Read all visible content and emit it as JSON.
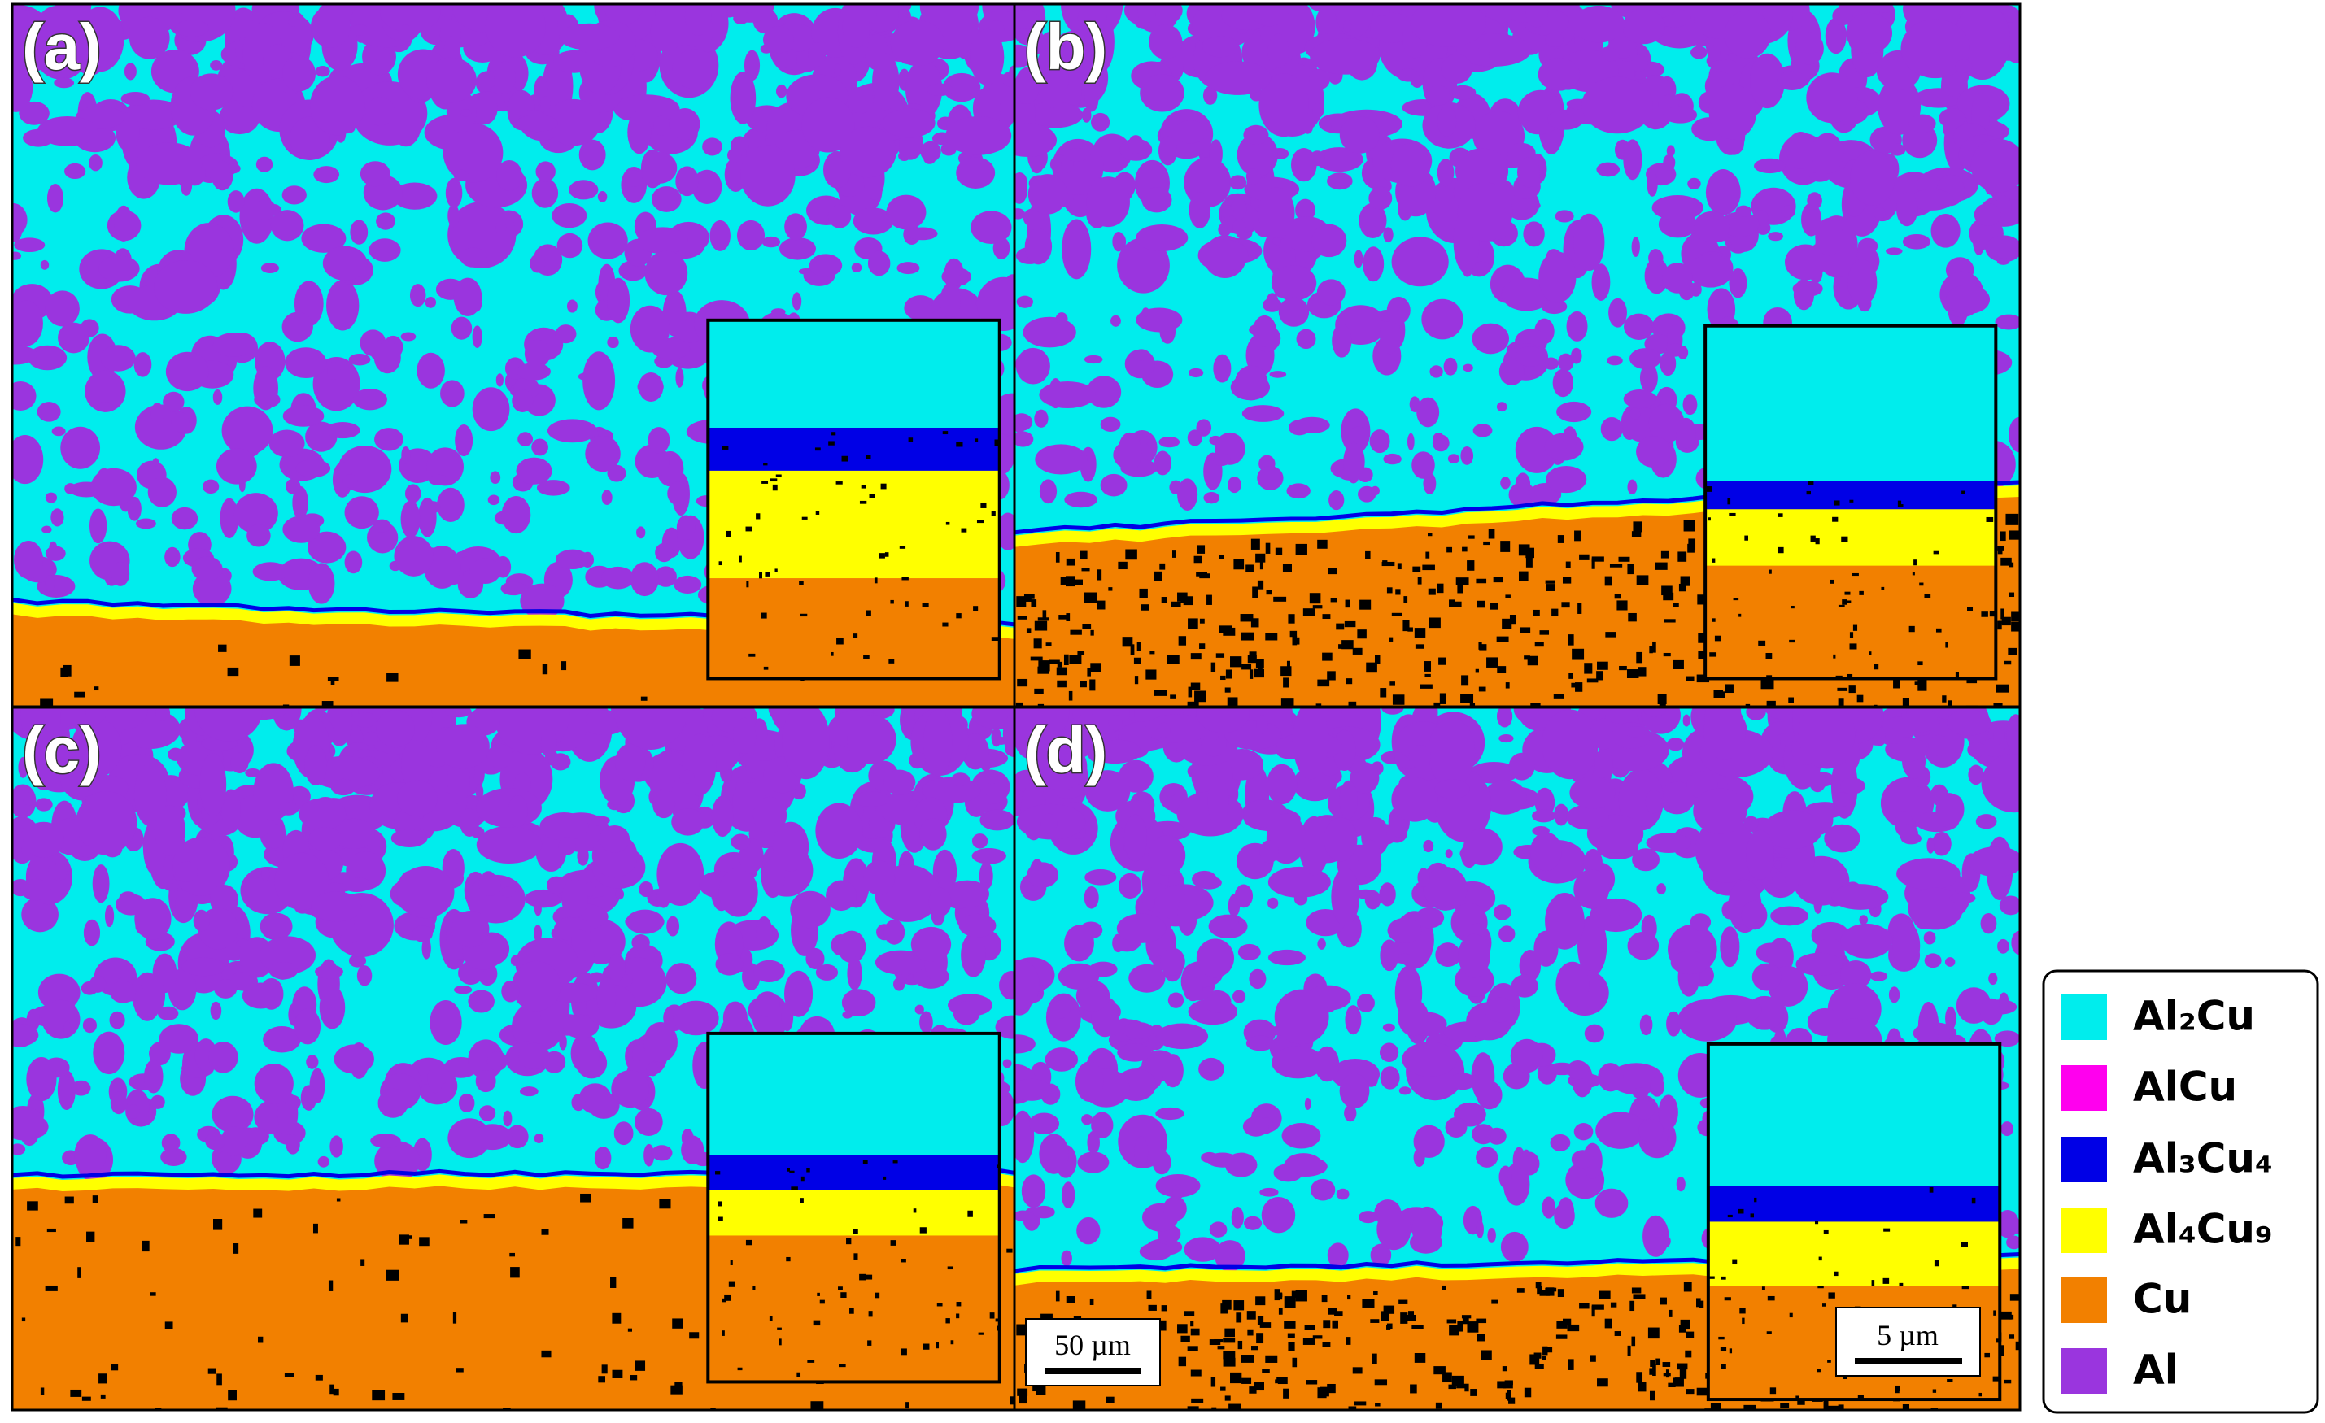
{
  "panels": [
    {
      "label": "(a)"
    },
    {
      "label": "(b)"
    },
    {
      "label": "(c)"
    },
    {
      "label": "(d)"
    }
  ],
  "scale_bars": {
    "main": "50 µm",
    "inset": "5 µm"
  },
  "legend": [
    {
      "label": "Al₂Cu",
      "color": "#00eded"
    },
    {
      "label": "AlCu",
      "color": "#ff00ee"
    },
    {
      "label": "Al₃Cu₄",
      "color": "#0000e6"
    },
    {
      "label": "Al₄Cu₉",
      "color": "#ffff00"
    },
    {
      "label": "Cu",
      "color": "#f28000"
    },
    {
      "label": "Al",
      "color": "#9a35de"
    }
  ]
}
